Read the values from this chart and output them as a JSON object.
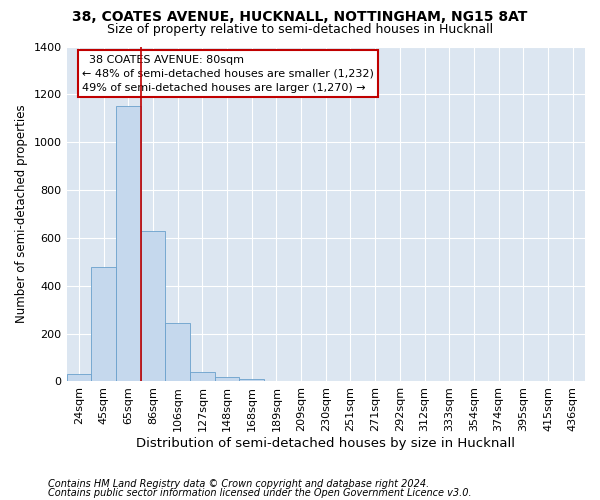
{
  "title": "38, COATES AVENUE, HUCKNALL, NOTTINGHAM, NG15 8AT",
  "subtitle": "Size of property relative to semi-detached houses in Hucknall",
  "xlabel": "Distribution of semi-detached houses by size in Hucknall",
  "ylabel": "Number of semi-detached properties",
  "footer1": "Contains HM Land Registry data © Crown copyright and database right 2024.",
  "footer2": "Contains public sector information licensed under the Open Government Licence v3.0.",
  "annotation_title": "38 COATES AVENUE: 80sqm",
  "annotation_line2": "← 48% of semi-detached houses are smaller (1,232)",
  "annotation_line3": "49% of semi-detached houses are larger (1,270) →",
  "categories": [
    "24sqm",
    "45sqm",
    "65sqm",
    "86sqm",
    "106sqm",
    "127sqm",
    "148sqm",
    "168sqm",
    "189sqm",
    "209sqm",
    "230sqm",
    "251sqm",
    "271sqm",
    "292sqm",
    "312sqm",
    "333sqm",
    "354sqm",
    "374sqm",
    "395sqm",
    "415sqm",
    "436sqm"
  ],
  "values": [
    30,
    480,
    1150,
    630,
    245,
    40,
    18,
    12,
    0,
    0,
    0,
    0,
    0,
    0,
    0,
    0,
    0,
    0,
    0,
    0,
    0
  ],
  "bar_color": "#c5d8ed",
  "bar_edge_color": "#6aa0cc",
  "vline_color": "#c00000",
  "vline_x": 2.5,
  "ylim": [
    0,
    1400
  ],
  "yticks": [
    0,
    200,
    400,
    600,
    800,
    1000,
    1200,
    1400
  ],
  "annotation_box_color": "#ffffff",
  "annotation_box_edge": "#c00000",
  "plot_bg_color": "#dce6f1",
  "title_fontsize": 10,
  "subtitle_fontsize": 9,
  "xlabel_fontsize": 9.5,
  "ylabel_fontsize": 8.5,
  "tick_fontsize": 8,
  "annotation_fontsize": 8,
  "footer_fontsize": 7
}
